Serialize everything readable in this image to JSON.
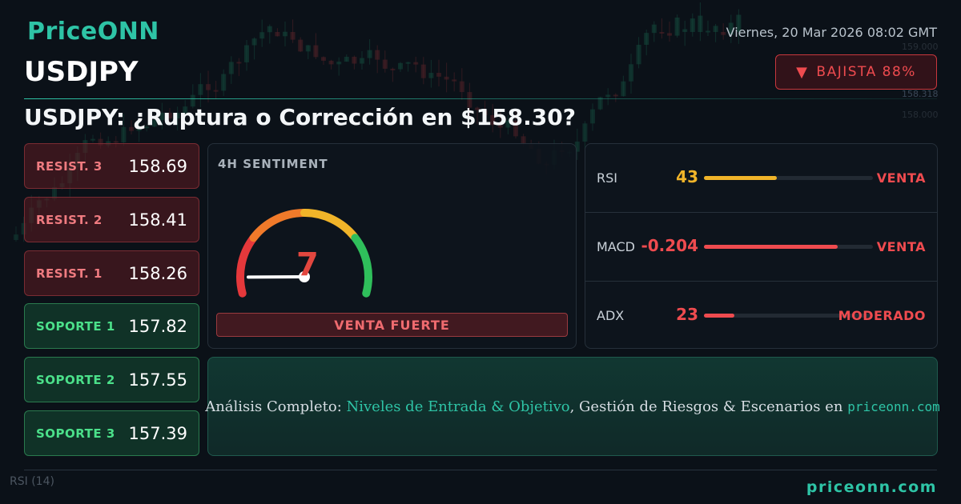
{
  "brand": {
    "logo": "PriceONN",
    "footer_domain": "priceonn.com"
  },
  "timestamp": "Viernes, 20 Mar 2026 08:02 GMT",
  "symbol": "USDJPY",
  "trend": {
    "icon": "triangle-down-icon",
    "label": "BAJISTA 88%",
    "color": "#ef4b4f"
  },
  "headline": "USDJPY: ¿Ruptura o Corrección en $158.30?",
  "levels": [
    {
      "label": "RESIST. 3",
      "value": "158.69",
      "kind": "resistance"
    },
    {
      "label": "RESIST. 2",
      "value": "158.41",
      "kind": "resistance"
    },
    {
      "label": "RESIST. 1",
      "value": "158.26",
      "kind": "resistance"
    },
    {
      "label": "SOPORTE 1",
      "value": "157.82",
      "kind": "support"
    },
    {
      "label": "SOPORTE 2",
      "value": "157.55",
      "kind": "support"
    },
    {
      "label": "SOPORTE 3",
      "value": "157.39",
      "kind": "support"
    }
  ],
  "sentiment": {
    "title": "4H SENTIMENT",
    "value": "7",
    "scale_max": 100,
    "label": "VENTA FUERTE",
    "gauge_colors": [
      "#e5383b",
      "#f07a2a",
      "#f0b429",
      "#2fbf5b"
    ]
  },
  "indicators": [
    {
      "name": "RSI",
      "value": "43",
      "fill_fraction": 0.43,
      "signal": "VENTA",
      "value_color": "#f0b429",
      "fill_color": "#f0b429",
      "signal_color": "#ef4b4f"
    },
    {
      "name": "MACD",
      "value": "-0.204",
      "fill_fraction": 0.79,
      "signal": "VENTA",
      "value_color": "#ef4b4f",
      "fill_color": "#ef4b4f",
      "signal_color": "#ef4b4f"
    },
    {
      "name": "ADX",
      "value": "23",
      "fill_fraction": 0.18,
      "signal": "MODERADO",
      "value_color": "#ef4b4f",
      "fill_color": "#ef4b4f",
      "signal_color": "#ef4b4f"
    }
  ],
  "cta": {
    "lead": "Análisis Completo: ",
    "highlight": "Niveles de Entrada & Objetivo",
    "middle": ", Gestión de Riesgos & Escenarios en ",
    "domain": "priceonn.com"
  },
  "background": {
    "price_tags": [
      "159.000",
      "158.318",
      "158.000"
    ],
    "footer_indicator": "RSI (14)"
  }
}
